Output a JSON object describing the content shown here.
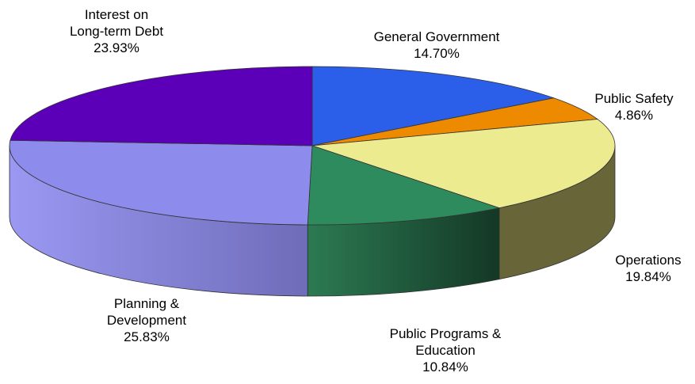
{
  "chart_data": {
    "type": "pie",
    "style": "3d-exploded-none",
    "title": "",
    "slices": [
      {
        "name": "General Government",
        "lines": [
          "General Government",
          "14.70%"
        ],
        "value": 14.7,
        "percent_label": "14.70%",
        "color": "#2B5FEA",
        "side_color": "#1F3FAA"
      },
      {
        "name": "Public Safety",
        "lines": [
          "Public Safety",
          "4.86%"
        ],
        "value": 4.86,
        "percent_label": "4.86%",
        "color": "#EE8A00",
        "side_color": "#A86000"
      },
      {
        "name": "Operations",
        "lines": [
          "Operations",
          "19.84%"
        ],
        "value": 19.84,
        "percent_label": "19.84%",
        "color": "#EDEB8F",
        "side_color": "#686539"
      },
      {
        "name": "Public Programs & Education",
        "lines": [
          "Public Programs &",
          "Education",
          "10.84%"
        ],
        "value": 10.84,
        "percent_label": "10.84%",
        "color": "#2D8B5D",
        "side_color": "#1E5E40"
      },
      {
        "name": "Planning & Development",
        "lines": [
          "Planning &",
          "Development",
          "25.83%"
        ],
        "value": 25.83,
        "percent_label": "25.83%",
        "color": "#8D8BEC",
        "side_color": "#7E7CD6"
      },
      {
        "name": "Interest on Long-term Debt",
        "lines": [
          "Interest on",
          "Long-term Debt",
          "23.93%"
        ],
        "value": 23.93,
        "percent_label": "23.93%",
        "color": "#5B00B8",
        "side_color": "#3E0080"
      }
    ]
  }
}
